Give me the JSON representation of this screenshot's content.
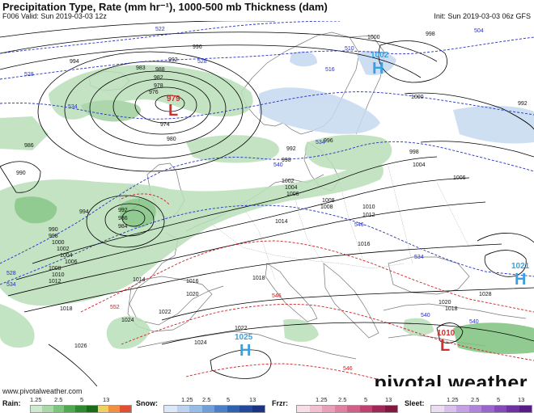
{
  "header": {
    "title": "Precipitation Type, Rate (mm hr⁻¹), 1000-500 mb Thickness (dam)",
    "valid": "F006 Valid: Sun 2019-03-03 12z",
    "init": "Init: Sun 2019-03-03 06z GFS"
  },
  "footer": {
    "website": "www.pivotalweather.com",
    "logo": "pivotal weather"
  },
  "legend": {
    "ticks": [
      "1.25",
      "2.5",
      "5",
      "13"
    ],
    "groups": [
      {
        "label": "Rain:",
        "colors": [
          "#cfe9cf",
          "#a9d9a9",
          "#7cc57c",
          "#4faa4f",
          "#2f8a2f",
          "#1a6a1a",
          "#f0d060",
          "#f09040",
          "#e05030"
        ]
      },
      {
        "label": "Snow:",
        "colors": [
          "#dbe8f7",
          "#bcd3ef",
          "#97bce5",
          "#6f9fd8",
          "#4a80c8",
          "#3060b0",
          "#24489a",
          "#1a3480"
        ]
      },
      {
        "label": "Frzr:",
        "colors": [
          "#f7dde6",
          "#f0c0d0",
          "#e8a0b8",
          "#e080a0",
          "#d06088",
          "#c04070",
          "#a02858",
          "#801840"
        ]
      },
      {
        "label": "Sleet:",
        "colors": [
          "#eadcf3",
          "#d8c0ec",
          "#c4a2e2",
          "#b084d8",
          "#9a66cc",
          "#844ab8",
          "#6c32a0",
          "#561c88"
        ]
      }
    ]
  },
  "centers": [
    {
      "type": "L",
      "value": "979",
      "color": "#d03030"
    },
    {
      "type": "H",
      "value": "1002",
      "color": "#3aa0e0"
    },
    {
      "type": "H",
      "value": "1021",
      "color": "#3aa0e0"
    },
    {
      "type": "H",
      "value": "1025",
      "color": "#3aa0e0"
    },
    {
      "type": "L",
      "value": "1010",
      "color": "#d03030"
    }
  ],
  "isobar_labels": [
    "994",
    "982",
    "978",
    "976",
    "974",
    "996",
    "992",
    "988",
    "983",
    "980",
    "986",
    "990",
    "994",
    "992",
    "986",
    "984",
    "990",
    "998",
    "1000",
    "1002",
    "1004",
    "1006",
    "1008",
    "1010",
    "1012",
    "1014",
    "1018",
    "1020",
    "1022",
    "1024",
    "1026",
    "1016",
    "1000",
    "998",
    "992",
    "998",
    "996",
    "1000",
    "992",
    "998",
    "1002",
    "1004",
    "1006",
    "1008",
    "1010",
    "1012",
    "1014",
    "1016",
    "1018",
    "1020",
    "1022",
    "1024",
    "1028",
    "1018",
    "1004",
    "1006",
    "1008"
  ],
  "thickness_labels": [
    "522",
    "528",
    "534",
    "528",
    "534",
    "516",
    "510",
    "504",
    "534",
    "540",
    "546",
    "540",
    "534",
    "528",
    "552",
    "546",
    "540",
    "546"
  ],
  "colors": {
    "rain_light": "#b9dfb9",
    "rain_mid": "#7fc27f",
    "snow_light": "#c6d9f0",
    "isobar": "#000000",
    "thickness_cold": "#2430c8",
    "thickness_warm": "#d02020",
    "land": "#ffffff",
    "border": "#666666"
  }
}
